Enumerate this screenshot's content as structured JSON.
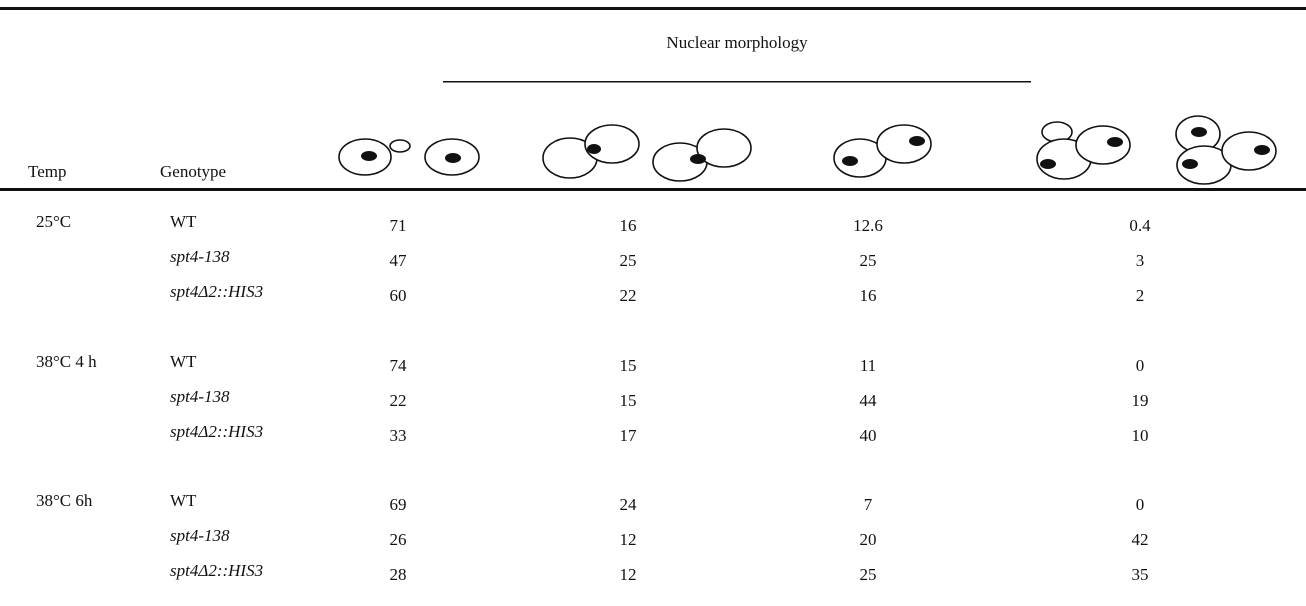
{
  "header": {
    "group_title": "Nuclear morphology",
    "columns": [
      "Temp",
      "Genotype"
    ]
  },
  "table": {
    "groups": [
      {
        "temp": "25°C",
        "rows": [
          {
            "genotype": "WT",
            "values": [
              71,
              16,
              12.6,
              0.4
            ]
          },
          {
            "genotype": "spt4-138",
            "values": [
              47,
              25,
              25,
              3
            ]
          },
          {
            "genotype": "spt4Δ2::HIS3",
            "values": [
              60,
              22,
              16,
              2
            ]
          }
        ]
      },
      {
        "temp": "38°C  4 h",
        "rows": [
          {
            "genotype": "WT",
            "values": [
              74,
              15,
              11,
              0
            ]
          },
          {
            "genotype": "spt4-138",
            "values": [
              22,
              15,
              44,
              19
            ]
          },
          {
            "genotype": "spt4Δ2::HIS3",
            "values": [
              33,
              17,
              40,
              10
            ]
          }
        ]
      },
      {
        "temp": "38°C  6h",
        "rows": [
          {
            "genotype": "WT",
            "values": [
              69,
              24,
              7,
              0
            ]
          },
          {
            "genotype": "spt4-138",
            "values": [
              26,
              12,
              20,
              42
            ]
          },
          {
            "genotype": "spt4Δ2::HIS3",
            "values": [
              28,
              12,
              25,
              35
            ]
          }
        ]
      }
    ]
  }
}
